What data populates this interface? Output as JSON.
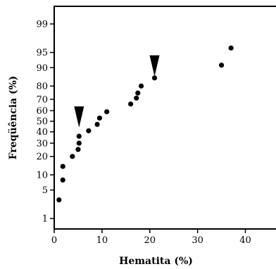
{
  "chart_data": {
    "type": "scatter",
    "title": "",
    "xlabel": "Hematita (%)",
    "ylabel": "Freqüência (%)",
    "xlim": [
      0,
      47
    ],
    "yscale": "probability",
    "ylim": [
      0.5,
      99.7
    ],
    "xticks": [
      0,
      10,
      20,
      30,
      40
    ],
    "yticks": [
      1,
      5,
      10,
      20,
      30,
      40,
      50,
      60,
      70,
      80,
      90,
      95,
      99
    ],
    "grid": false,
    "legend": "none",
    "points": [
      {
        "x": 1.0,
        "y": 3
      },
      {
        "x": 1.8,
        "y": 8
      },
      {
        "x": 1.8,
        "y": 14
      },
      {
        "x": 3.8,
        "y": 20
      },
      {
        "x": 5.0,
        "y": 25
      },
      {
        "x": 5.2,
        "y": 30
      },
      {
        "x": 5.2,
        "y": 36
      },
      {
        "x": 7.2,
        "y": 41
      },
      {
        "x": 9.0,
        "y": 47
      },
      {
        "x": 9.5,
        "y": 53
      },
      {
        "x": 11.0,
        "y": 59
      },
      {
        "x": 16.0,
        "y": 66
      },
      {
        "x": 17.2,
        "y": 71
      },
      {
        "x": 17.5,
        "y": 75
      },
      {
        "x": 18.2,
        "y": 80
      },
      {
        "x": 21.0,
        "y": 85
      },
      {
        "x": 35.0,
        "y": 91
      },
      {
        "x": 37.0,
        "y": 96
      }
    ],
    "annotations": [
      {
        "type": "arrow-down",
        "x": 5.2,
        "y": 60
      },
      {
        "type": "arrow-down",
        "x": 21.0,
        "y": 93
      }
    ]
  }
}
